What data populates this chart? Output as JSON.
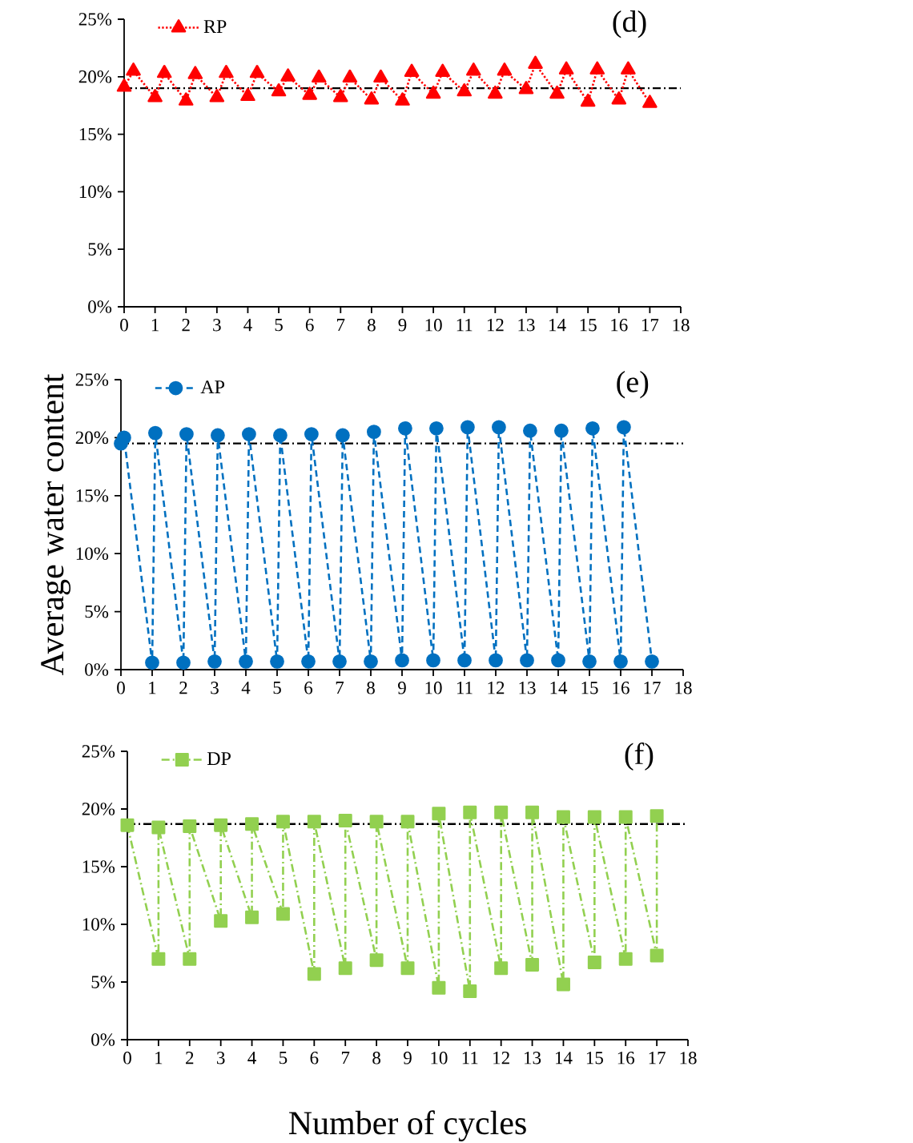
{
  "chart_data": [
    {
      "type": "line",
      "annotations": [
        "(d)"
      ],
      "legend": "top left",
      "xlim": [
        0,
        18
      ],
      "xticks": [
        0,
        1,
        2,
        3,
        4,
        5,
        6,
        7,
        8,
        9,
        10,
        11,
        12,
        13,
        14,
        15,
        16,
        17,
        18
      ],
      "ylim": [
        0,
        25
      ],
      "yticks": [
        {
          "value": 0,
          "label": "0%"
        },
        {
          "value": 5,
          "label": "5%"
        },
        {
          "value": 10,
          "label": "10%"
        },
        {
          "value": 15,
          "label": "15%"
        },
        {
          "value": 20,
          "label": "20%"
        },
        {
          "value": 25,
          "label": "25%"
        }
      ],
      "ref_lines": [
        {
          "axis": "y",
          "value": 19.0,
          "color": "#000000",
          "line_style": "dashdot"
        }
      ],
      "x": [
        0,
        0.3,
        1,
        1.3,
        2,
        2.3,
        3,
        3.3,
        4,
        4.3,
        5,
        5.3,
        6,
        6.3,
        7,
        7.3,
        8,
        8.3,
        9,
        9.3,
        10,
        10.3,
        11,
        11.3,
        12,
        12.3,
        13,
        13.3,
        14,
        14.3,
        15,
        15.3,
        16,
        16.3,
        17
      ],
      "series": [
        {
          "name": "RP",
          "color": "#ff0000",
          "marker": "triangle",
          "line_style": "dotted",
          "values": [
            19.1,
            20.5,
            18.2,
            20.3,
            17.9,
            20.2,
            18.2,
            20.3,
            18.3,
            20.3,
            18.7,
            20.0,
            18.4,
            19.9,
            18.2,
            19.9,
            18.0,
            19.9,
            17.9,
            20.4,
            18.5,
            20.4,
            18.7,
            20.5,
            18.5,
            20.5,
            18.9,
            21.1,
            18.5,
            20.6,
            17.8,
            20.6,
            18.0,
            20.6,
            17.7
          ]
        }
      ]
    },
    {
      "type": "line",
      "annotations": [
        "(e)"
      ],
      "legend": "top left",
      "ylabel": "Average water content",
      "xlim": [
        0,
        18
      ],
      "xticks": [
        0,
        1,
        2,
        3,
        4,
        5,
        6,
        7,
        8,
        9,
        10,
        11,
        12,
        13,
        14,
        15,
        16,
        17,
        18
      ],
      "ylim": [
        0,
        25
      ],
      "yticks": [
        {
          "value": 0,
          "label": "0%"
        },
        {
          "value": 5,
          "label": "5%"
        },
        {
          "value": 10,
          "label": "10%"
        },
        {
          "value": 15,
          "label": "15%"
        },
        {
          "value": 20,
          "label": "20%"
        },
        {
          "value": 25,
          "label": "25%"
        }
      ],
      "ref_lines": [
        {
          "axis": "y",
          "value": 19.5,
          "color": "#000000",
          "line_style": "dashdot"
        }
      ],
      "x": [
        0,
        0.1,
        1,
        1.1,
        2,
        2.1,
        3,
        3.1,
        4,
        4.1,
        5,
        5.1,
        6,
        6.1,
        7,
        7.1,
        8,
        8.1,
        9,
        9.1,
        10,
        10.1,
        11,
        11.1,
        12,
        12.1,
        13,
        13.1,
        14,
        14.1,
        15,
        15.1,
        16,
        16.1,
        17
      ],
      "series": [
        {
          "name": "AP",
          "color": "#0070c0",
          "marker": "circle",
          "line_style": "dashed",
          "values": [
            19.5,
            20.0,
            0.6,
            20.4,
            0.6,
            20.3,
            0.7,
            20.2,
            0.7,
            20.3,
            0.7,
            20.2,
            0.7,
            20.3,
            0.7,
            20.2,
            0.7,
            20.5,
            0.8,
            20.8,
            0.8,
            20.8,
            0.8,
            20.9,
            0.8,
            20.9,
            0.8,
            20.6,
            0.8,
            20.6,
            0.7,
            20.8,
            0.7,
            20.9,
            0.7
          ]
        }
      ]
    },
    {
      "type": "line",
      "annotations": [
        "(f)"
      ],
      "legend": "top left",
      "xlabel": "Number of cycles",
      "xlim": [
        0,
        18
      ],
      "xticks": [
        0,
        1,
        2,
        3,
        4,
        5,
        6,
        7,
        8,
        9,
        10,
        11,
        12,
        13,
        14,
        15,
        16,
        17,
        18
      ],
      "ylim": [
        0,
        25
      ],
      "yticks": [
        {
          "value": 0,
          "label": "0%"
        },
        {
          "value": 5,
          "label": "5%"
        },
        {
          "value": 10,
          "label": "10%"
        },
        {
          "value": 15,
          "label": "15%"
        },
        {
          "value": 20,
          "label": "20%"
        },
        {
          "value": 25,
          "label": "25%"
        }
      ],
      "ref_lines": [
        {
          "axis": "y",
          "value": 18.7,
          "color": "#000000",
          "line_style": "dashdot"
        }
      ],
      "x": [
        0,
        1,
        1,
        2,
        2,
        3,
        3,
        4,
        4,
        5,
        5,
        6,
        6,
        7,
        7,
        8,
        8,
        9,
        9,
        10,
        10,
        11,
        11,
        12,
        12,
        13,
        13,
        14,
        14,
        15,
        15,
        16,
        16,
        17,
        17
      ],
      "series": [
        {
          "name": "DP",
          "color": "#92d050",
          "marker": "square",
          "line_style": "dashdot",
          "values": [
            18.6,
            7.0,
            18.4,
            7.0,
            18.5,
            10.3,
            18.6,
            10.6,
            18.7,
            10.9,
            18.9,
            5.7,
            18.9,
            6.2,
            19.0,
            6.9,
            18.9,
            6.2,
            18.9,
            4.5,
            19.6,
            4.2,
            19.7,
            6.2,
            19.7,
            6.5,
            19.7,
            4.8,
            19.3,
            6.7,
            19.3,
            7.0,
            19.3,
            7.3,
            19.4
          ]
        }
      ]
    }
  ]
}
